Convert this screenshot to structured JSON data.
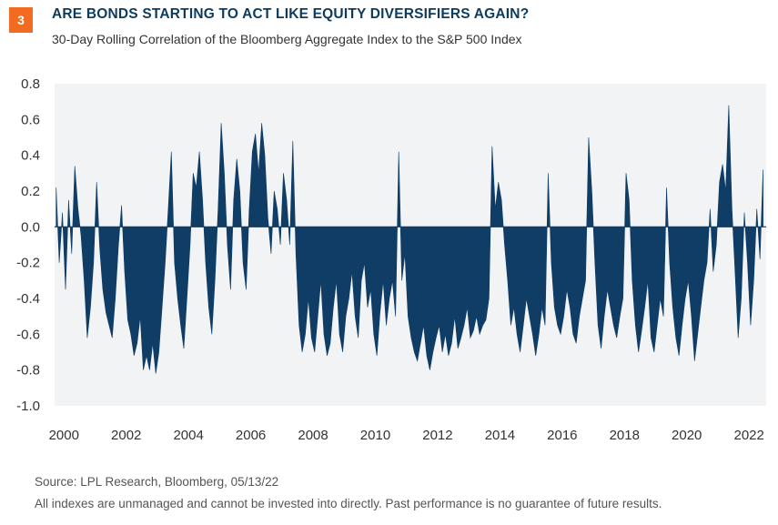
{
  "badge": {
    "number": "3"
  },
  "header": {
    "title": "ARE BONDS STARTING TO ACT LIKE EQUITY DIVERSIFIERS AGAIN?",
    "subtitle": "30-Day Rolling Correlation of the Bloomberg Aggregate Index to the S&P 500 Index"
  },
  "footer": {
    "source": "Source: LPL Research, Bloomberg,  05/13/22",
    "disclaimer": "All indexes are unmanaged and cannot be invested into directly. Past performance is no guarantee of future results."
  },
  "colors": {
    "badge": "#F26B21",
    "title": "#0C3B5E",
    "series": "#0F3D66",
    "plot_background": "#F1F3F5",
    "axis_text": "#333333"
  },
  "chart_data": {
    "type": "area",
    "title": "30-Day Rolling Correlation of the Bloomberg Aggregate Index to the S&P 500 Index",
    "xlabel": "",
    "ylabel": "",
    "xlim": [
      1999.7,
      2022.55
    ],
    "ylim": [
      -1.0,
      0.8
    ],
    "yticks": [
      0.8,
      0.6,
      0.4,
      0.2,
      0.0,
      -0.2,
      -0.4,
      -0.6,
      -0.8,
      -1.0
    ],
    "ytick_labels": [
      "0.8",
      "0.6",
      "0.4",
      "0.2",
      "0.0",
      "-0.2",
      "-0.4",
      "-0.6",
      "-0.8",
      "-1.0"
    ],
    "xticks": [
      2000,
      2002,
      2004,
      2006,
      2008,
      2010,
      2012,
      2014,
      2016,
      2018,
      2020,
      2022
    ],
    "xtick_labels": [
      "2000",
      "2002",
      "2004",
      "2006",
      "2008",
      "2010",
      "2012",
      "2014",
      "2016",
      "2018",
      "2020",
      "2022"
    ],
    "grid": false,
    "baseline": 0,
    "series": [
      {
        "x": [
          1999.75,
          1999.85,
          1999.95,
          2000.05,
          2000.15,
          2000.25,
          2000.35,
          2000.45,
          2000.55,
          2000.65,
          2000.75,
          2000.85,
          2000.95,
          2001.05,
          2001.15,
          2001.25,
          2001.35,
          2001.45,
          2001.55,
          2001.65,
          2001.75,
          2001.85,
          2001.95,
          2002.05,
          2002.15,
          2002.25,
          2002.35,
          2002.45,
          2002.55,
          2002.65,
          2002.75,
          2002.85,
          2002.95,
          2003.05,
          2003.15,
          2003.25,
          2003.35,
          2003.45,
          2003.55,
          2003.65,
          2003.75,
          2003.85,
          2003.95,
          2004.05,
          2004.15,
          2004.25,
          2004.35,
          2004.45,
          2004.55,
          2004.65,
          2004.75,
          2004.85,
          2004.95,
          2005.05,
          2005.15,
          2005.25,
          2005.35,
          2005.45,
          2005.55,
          2005.65,
          2005.75,
          2005.85,
          2005.95,
          2006.05,
          2006.15,
          2006.25,
          2006.35,
          2006.45,
          2006.55,
          2006.65,
          2006.75,
          2006.85,
          2006.95,
          2007.05,
          2007.15,
          2007.25,
          2007.35,
          2007.45,
          2007.55,
          2007.65,
          2007.75,
          2007.85,
          2007.95,
          2008.05,
          2008.15,
          2008.25,
          2008.35,
          2008.45,
          2008.55,
          2008.65,
          2008.75,
          2008.85,
          2008.95,
          2009.05,
          2009.15,
          2009.25,
          2009.35,
          2009.45,
          2009.55,
          2009.65,
          2009.75,
          2009.85,
          2009.95,
          2010.05,
          2010.15,
          2010.25,
          2010.35,
          2010.45,
          2010.55,
          2010.65,
          2010.75,
          2010.85,
          2010.95,
          2011.05,
          2011.15,
          2011.25,
          2011.35,
          2011.45,
          2011.55,
          2011.65,
          2011.75,
          2011.85,
          2011.95,
          2012.05,
          2012.15,
          2012.25,
          2012.35,
          2012.45,
          2012.55,
          2012.65,
          2012.75,
          2012.85,
          2012.95,
          2013.05,
          2013.15,
          2013.25,
          2013.35,
          2013.45,
          2013.55,
          2013.65,
          2013.75,
          2013.85,
          2013.95,
          2014.05,
          2014.15,
          2014.25,
          2014.35,
          2014.45,
          2014.55,
          2014.65,
          2014.75,
          2014.85,
          2014.95,
          2015.05,
          2015.15,
          2015.25,
          2015.35,
          2015.45,
          2015.55,
          2015.65,
          2015.75,
          2015.85,
          2015.95,
          2016.05,
          2016.15,
          2016.25,
          2016.35,
          2016.45,
          2016.55,
          2016.65,
          2016.75,
          2016.85,
          2016.95,
          2017.05,
          2017.15,
          2017.25,
          2017.35,
          2017.45,
          2017.55,
          2017.65,
          2017.75,
          2017.85,
          2017.95,
          2018.05,
          2018.15,
          2018.25,
          2018.35,
          2018.45,
          2018.55,
          2018.65,
          2018.75,
          2018.85,
          2018.95,
          2019.05,
          2019.15,
          2019.25,
          2019.35,
          2019.45,
          2019.55,
          2019.65,
          2019.75,
          2019.85,
          2019.95,
          2020.05,
          2020.15,
          2020.25,
          2020.35,
          2020.45,
          2020.55,
          2020.65,
          2020.75,
          2020.85,
          2020.95,
          2021.05,
          2021.15,
          2021.25,
          2021.35,
          2021.45,
          2021.55,
          2021.65,
          2021.75,
          2021.85,
          2021.95,
          2022.05,
          2022.15,
          2022.25,
          2022.35,
          2022.45
        ],
        "values": [
          0.22,
          -0.2,
          0.08,
          -0.35,
          0.15,
          -0.15,
          0.34,
          0.1,
          -0.05,
          -0.3,
          -0.62,
          -0.45,
          -0.2,
          0.25,
          -0.12,
          -0.35,
          -0.48,
          -0.55,
          -0.62,
          -0.4,
          -0.1,
          0.12,
          -0.25,
          -0.52,
          -0.6,
          -0.72,
          -0.65,
          -0.5,
          -0.8,
          -0.72,
          -0.8,
          -0.65,
          -0.82,
          -0.7,
          -0.45,
          -0.2,
          0.1,
          0.42,
          -0.2,
          -0.4,
          -0.55,
          -0.68,
          -0.4,
          -0.1,
          0.3,
          0.22,
          0.42,
          0.15,
          -0.2,
          -0.45,
          -0.6,
          -0.3,
          0.1,
          0.58,
          0.3,
          -0.1,
          -0.35,
          0.15,
          0.38,
          0.2,
          -0.2,
          -0.35,
          0.1,
          0.42,
          0.52,
          0.3,
          0.58,
          0.4,
          0.05,
          -0.15,
          0.2,
          0.1,
          -0.1,
          0.3,
          0.15,
          -0.1,
          0.48,
          -0.15,
          -0.55,
          -0.7,
          -0.6,
          -0.4,
          -0.62,
          -0.7,
          -0.5,
          -0.3,
          -0.6,
          -0.72,
          -0.65,
          -0.45,
          -0.3,
          -0.6,
          -0.7,
          -0.5,
          -0.4,
          -0.25,
          -0.5,
          -0.62,
          -0.3,
          -0.2,
          -0.45,
          -0.35,
          -0.6,
          -0.72,
          -0.48,
          -0.3,
          -0.55,
          -0.4,
          -0.3,
          -0.5,
          0.42,
          -0.3,
          -0.15,
          -0.5,
          -0.62,
          -0.7,
          -0.75,
          -0.65,
          -0.55,
          -0.72,
          -0.8,
          -0.7,
          -0.62,
          -0.55,
          -0.7,
          -0.6,
          -0.72,
          -0.65,
          -0.5,
          -0.68,
          -0.62,
          -0.55,
          -0.45,
          -0.62,
          -0.58,
          -0.5,
          -0.6,
          -0.55,
          -0.52,
          -0.4,
          0.45,
          0.1,
          0.25,
          0.15,
          -0.1,
          -0.3,
          -0.55,
          -0.45,
          -0.6,
          -0.7,
          -0.55,
          -0.4,
          -0.5,
          -0.6,
          -0.72,
          -0.6,
          -0.45,
          -0.55,
          0.3,
          -0.2,
          -0.45,
          -0.55,
          -0.6,
          -0.5,
          -0.35,
          -0.45,
          -0.6,
          -0.65,
          -0.5,
          -0.4,
          -0.3,
          0.5,
          0.2,
          -0.2,
          -0.55,
          -0.68,
          -0.5,
          -0.35,
          -0.45,
          -0.55,
          -0.62,
          -0.5,
          -0.4,
          0.3,
          0.15,
          -0.3,
          -0.55,
          -0.7,
          -0.58,
          -0.45,
          -0.3,
          -0.62,
          -0.7,
          -0.55,
          -0.4,
          -0.5,
          0.22,
          -0.2,
          -0.45,
          -0.62,
          -0.72,
          -0.55,
          -0.4,
          -0.3,
          -0.5,
          -0.75,
          -0.6,
          -0.45,
          -0.3,
          -0.2,
          0.1,
          -0.25,
          -0.1,
          0.25,
          0.35,
          0.2,
          0.68,
          0.1,
          -0.25,
          -0.62,
          -0.4,
          0.08,
          -0.2,
          -0.55,
          -0.3,
          0.1,
          -0.18,
          0.32
        ]
      }
    ]
  }
}
